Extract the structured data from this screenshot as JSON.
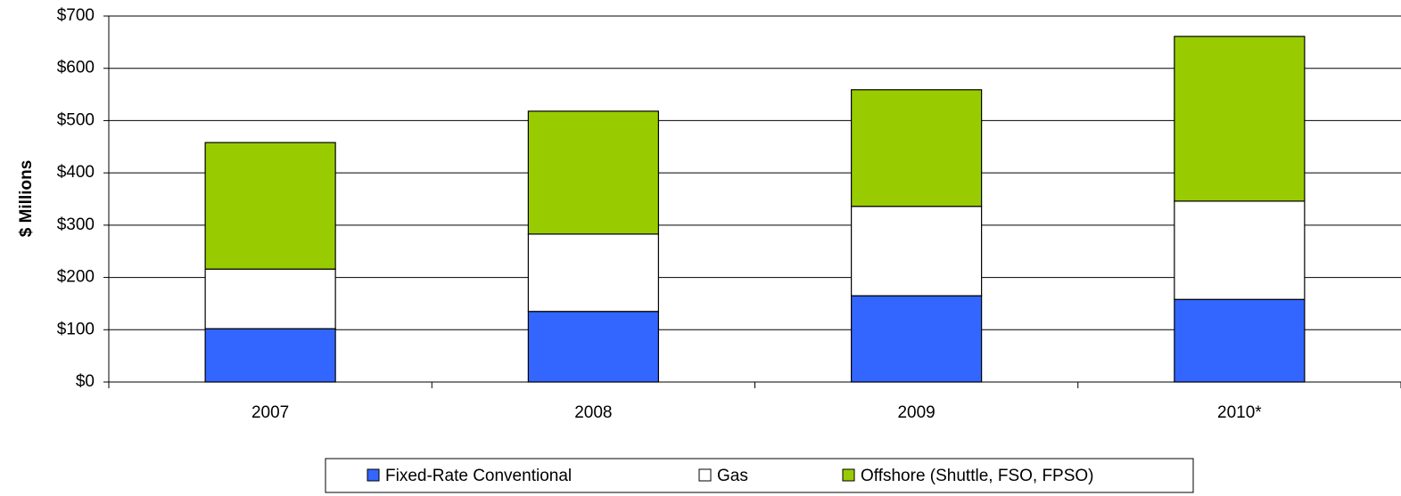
{
  "chart_data": {
    "type": "stacked_bar",
    "y_label": "$ Millions",
    "categories": [
      "2007",
      "2008",
      "2009",
      "2010*"
    ],
    "series": [
      {
        "name": "Fixed-Rate Conventional",
        "color": "#3366ff",
        "values": [
          102,
          135,
          165,
          158
        ]
      },
      {
        "name": "Gas",
        "color": "#ffffff",
        "values": [
          114,
          148,
          171,
          188
        ]
      },
      {
        "name": "Offshore (Shuttle, FSO, FPSO)",
        "color": "#99cc00",
        "values": [
          242,
          235,
          223,
          315
        ]
      }
    ],
    "ylim": [
      0,
      700
    ],
    "yticks": [
      {
        "value": 0,
        "label": "$0"
      },
      {
        "value": 100,
        "label": "$100"
      },
      {
        "value": 200,
        "label": "$200"
      },
      {
        "value": 300,
        "label": "$300"
      },
      {
        "value": 400,
        "label": "$400"
      },
      {
        "value": 500,
        "label": "$500"
      },
      {
        "value": 600,
        "label": "$600"
      },
      {
        "value": 700,
        "label": "$700"
      }
    ],
    "grid": true,
    "legend": "bottom"
  }
}
